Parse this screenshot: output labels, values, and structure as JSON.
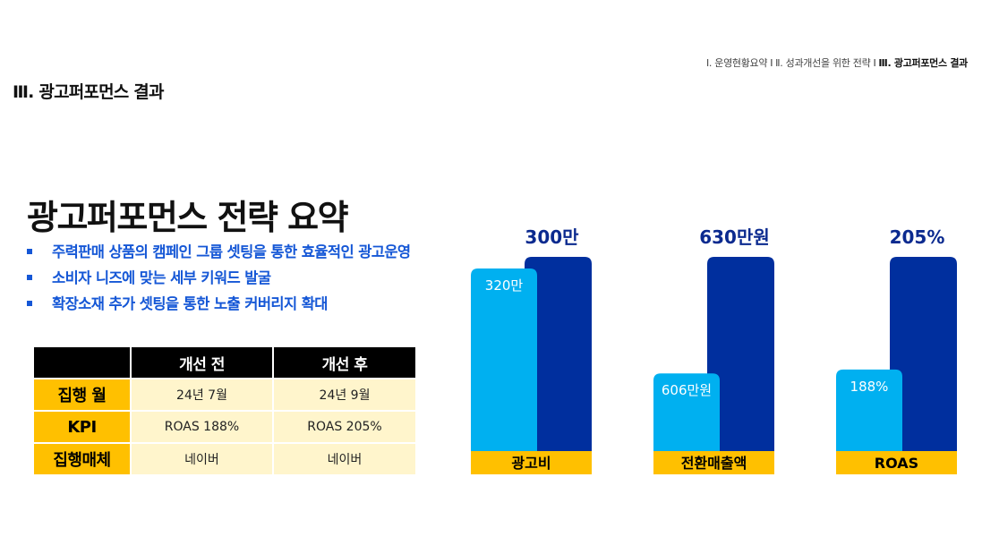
{
  "breadcrumb": {
    "items": [
      "Ⅰ. 운영현황요약",
      "Ⅱ. 성과개선을 위한 전략",
      "Ⅲ. 광고퍼포먼스 결과"
    ],
    "separator": "I"
  },
  "section_title": "Ⅲ. 광고퍼포먼스 결과",
  "main_title": "광고퍼포먼스 전략 요약",
  "bullets": [
    "주력판매 상품의 캠페인 그룹 셋팅을 통한 효율적인 광고운영",
    "소비자 니즈에 맞는 세부 키워드 발굴",
    "확장소재 추가 셋팅을 통한 노출 커버리지 확대"
  ],
  "table": {
    "headers": [
      "",
      "개선 전",
      "개선 후"
    ],
    "rows": [
      {
        "label": "집행 월",
        "before": "24년 7월",
        "after": "24년 9월"
      },
      {
        "label": "KPI",
        "before": "ROAS 188%",
        "after": "ROAS 205%"
      },
      {
        "label": "집행매체",
        "before": "네이버",
        "after": "네이버"
      }
    ]
  },
  "colors": {
    "accent_blue": "#1557d6",
    "before_bar": "#00b0f0",
    "after_bar": "#002f9e",
    "category_bar": "#ffc000",
    "value_text": "#0b2a8f"
  },
  "chart_data": {
    "type": "bar",
    "categories": [
      "광고비",
      "전환매출액",
      "ROAS"
    ],
    "series": [
      {
        "values": [
          0.94,
          0.4,
          0.42
        ],
        "labels": [
          "320만",
          "606만원",
          "188%"
        ]
      },
      {
        "values": [
          1,
          1,
          1
        ],
        "labels": [
          "300만",
          "630만원",
          "205%"
        ]
      }
    ]
  }
}
